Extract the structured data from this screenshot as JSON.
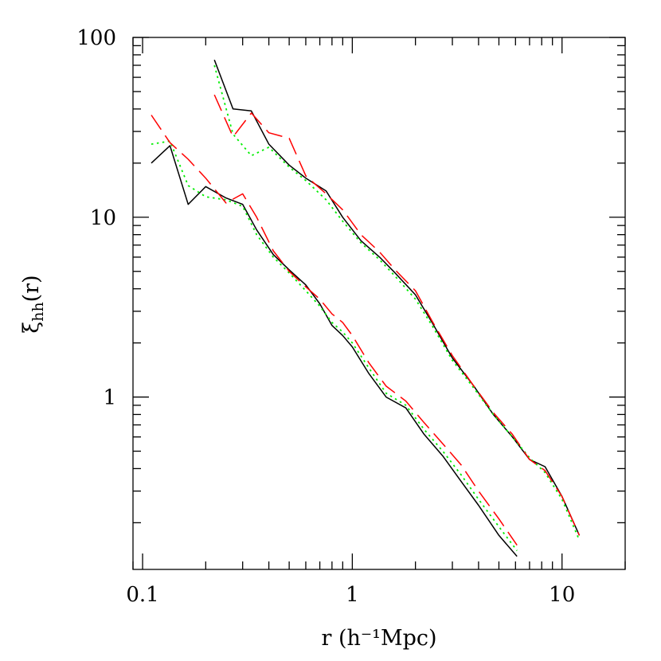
{
  "chart_data": {
    "type": "line",
    "x_scale": "log",
    "y_scale": "log",
    "xlim": [
      0.09,
      20
    ],
    "ylim": [
      0.11,
      100
    ],
    "xlabel": "r (h⁻¹Mpc)",
    "ylabel": {
      "main": "ξ",
      "sub": "hh",
      "suffix": "(r)"
    },
    "x_ticks": [
      {
        "value": 0.1,
        "label": "0.1"
      },
      {
        "value": 1,
        "label": "1"
      },
      {
        "value": 10,
        "label": "10"
      }
    ],
    "y_ticks": [
      {
        "value": 1,
        "label": "1"
      },
      {
        "value": 10,
        "label": "10"
      },
      {
        "value": 100,
        "label": "100"
      }
    ],
    "grid": false,
    "series": [
      {
        "group": "lower",
        "style": "solid",
        "color": "#000000",
        "x": [
          0.11,
          0.135,
          0.165,
          0.2,
          0.25,
          0.3,
          0.35,
          0.42,
          0.5,
          0.6,
          0.7,
          0.8,
          0.9,
          1.0,
          1.2,
          1.45,
          1.8,
          2.2,
          2.7,
          3.3,
          4.0,
          5.0,
          6.1
        ],
        "y": [
          20,
          25,
          11.8,
          14.8,
          12.8,
          11.8,
          8.5,
          6.2,
          5.1,
          4.2,
          3.3,
          2.5,
          2.2,
          1.9,
          1.35,
          1.0,
          0.87,
          0.62,
          0.47,
          0.34,
          0.25,
          0.17,
          0.13
        ]
      },
      {
        "group": "lower",
        "style": "dotted",
        "color": "#00ee00",
        "x": [
          0.11,
          0.135,
          0.165,
          0.2,
          0.25,
          0.3,
          0.35,
          0.42,
          0.5,
          0.6,
          0.7,
          0.8,
          0.9,
          1.0,
          1.2,
          1.45,
          1.8,
          2.2,
          2.7,
          3.3,
          4.0,
          5.0,
          6.1
        ],
        "y": [
          25.5,
          26.5,
          15,
          13,
          12.5,
          11.5,
          8,
          6,
          4.9,
          3.9,
          3.2,
          2.6,
          2.3,
          2.0,
          1.45,
          1.05,
          0.9,
          0.66,
          0.5,
          0.37,
          0.27,
          0.19,
          0.14
        ]
      },
      {
        "group": "lower",
        "style": "dashed",
        "color": "#ff0000",
        "x": [
          0.11,
          0.135,
          0.165,
          0.2,
          0.25,
          0.3,
          0.35,
          0.42,
          0.5,
          0.6,
          0.7,
          0.8,
          0.9,
          1.0,
          1.2,
          1.45,
          1.8,
          2.2,
          2.7,
          3.3,
          4.0,
          5.0,
          6.1
        ],
        "y": [
          37,
          26,
          21,
          16.5,
          12,
          13.5,
          10,
          6.5,
          5.0,
          4.1,
          3.5,
          2.9,
          2.6,
          2.2,
          1.55,
          1.15,
          0.95,
          0.72,
          0.55,
          0.42,
          0.3,
          0.21,
          0.15
        ]
      },
      {
        "group": "upper",
        "style": "solid",
        "color": "#000000",
        "x": [
          0.22,
          0.27,
          0.33,
          0.4,
          0.5,
          0.6,
          0.75,
          0.9,
          1.1,
          1.35,
          1.6,
          2.0,
          2.4,
          3.0,
          3.8,
          4.7,
          5.8,
          7.0,
          8.3,
          10.0,
          12.1
        ],
        "y": [
          75,
          40,
          39,
          25.5,
          19.5,
          16.5,
          14,
          10,
          7.4,
          6.0,
          4.9,
          3.7,
          2.6,
          1.65,
          1.15,
          0.8,
          0.6,
          0.45,
          0.41,
          0.28,
          0.17
        ]
      },
      {
        "group": "upper",
        "style": "dotted",
        "color": "#00ee00",
        "x": [
          0.22,
          0.27,
          0.33,
          0.4,
          0.5,
          0.6,
          0.75,
          0.9,
          1.1,
          1.35,
          1.6,
          2.0,
          2.4,
          3.0,
          3.8,
          4.7,
          5.8,
          7.0,
          8.3,
          10.0,
          12.1
        ],
        "y": [
          70,
          29,
          22,
          24.5,
          19,
          16,
          12.5,
          9.5,
          7.2,
          5.8,
          4.7,
          3.5,
          2.5,
          1.6,
          1.12,
          0.8,
          0.6,
          0.46,
          0.38,
          0.27,
          0.16
        ]
      },
      {
        "group": "upper",
        "style": "dashed",
        "color": "#ff0000",
        "x": [
          0.22,
          0.27,
          0.33,
          0.4,
          0.5,
          0.6,
          0.75,
          0.9,
          1.1,
          1.35,
          1.6,
          2.0,
          2.4,
          3.0,
          3.8,
          4.7,
          5.8,
          7.0,
          8.3,
          10.0,
          12.1
        ],
        "y": [
          48,
          28,
          38,
          29.5,
          27.5,
          17,
          13.5,
          11,
          8,
          6.4,
          5.1,
          3.9,
          2.65,
          1.7,
          1.15,
          0.82,
          0.62,
          0.45,
          0.39,
          0.28,
          0.17
        ]
      }
    ]
  }
}
